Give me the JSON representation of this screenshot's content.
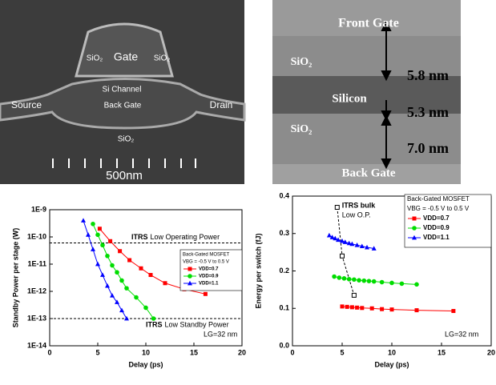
{
  "images": [
    {
      "labels": [
        "SiO₂",
        "Gate",
        "SiO₂",
        "Si Channel",
        "Source",
        "Back Gate",
        "Drain",
        "SiO₂",
        "500nm"
      ]
    },
    {
      "labels": [
        "Front Gate",
        "SiO₂",
        "5.8 nm",
        "Silicon",
        "5.3 nm",
        "SiO₂",
        "7.0 nm",
        "Back Gate"
      ]
    }
  ],
  "chart_data": [
    {
      "type": "line",
      "log_y": true,
      "xlabel": "Delay (ps)",
      "ylabel": "Standby Power per stage (W)",
      "xlim": [
        0,
        20
      ],
      "xticks": [
        0,
        5,
        10,
        15,
        20
      ],
      "ylim": [
        1e-14,
        1e-09
      ],
      "yticks": [
        {
          "value": 1e-14,
          "label": "1E-14"
        },
        {
          "value": 1e-13,
          "label": "1E-13"
        },
        {
          "value": 1e-12,
          "label": "1E-12"
        },
        {
          "value": 1e-11,
          "label": "1E-11"
        },
        {
          "value": 1e-10,
          "label": "1E-10"
        },
        {
          "value": 1e-09,
          "label": "1E-9"
        }
      ],
      "legend_title": [
        "Back-Gated MOSFET",
        "VBG = -0.5 V to 0.5 V"
      ],
      "legend_position": "right",
      "annotation": "LG=32 nm",
      "reference_lines": [
        {
          "value": 6e-11,
          "label_bold": "ITRS",
          "label": "Low Operating Power"
        },
        {
          "value": 1e-13,
          "label_bold": "ITRS",
          "label": "Low Standby Power"
        }
      ],
      "series": [
        {
          "name": "VDD=0.7",
          "color": "#ff0000",
          "marker": "square",
          "x": [
            5.2,
            6.3,
            7.3,
            8.3,
            9.5,
            10.5,
            12,
            14,
            16.2
          ],
          "values": [
            2e-10,
            7e-11,
            3e-11,
            1.4e-11,
            7e-12,
            4e-12,
            2e-12,
            1.2e-12,
            8e-13
          ]
        },
        {
          "name": "VDD=0.9",
          "color": "#00dd00",
          "marker": "circle",
          "x": [
            4.5,
            5,
            5.5,
            6,
            6.5,
            7,
            7.5,
            8,
            9,
            10,
            10.8
          ],
          "values": [
            3e-10,
            1.2e-10,
            5e-11,
            2e-11,
            9e-12,
            5e-12,
            2.5e-12,
            1.3e-12,
            6e-13,
            2.5e-13,
            1e-13
          ]
        },
        {
          "name": "VDD=1.1",
          "color": "#0000ff",
          "marker": "triangle",
          "x": [
            3.5,
            4,
            4.5,
            5,
            5.5,
            6,
            6.5,
            7,
            7.5,
            8
          ],
          "values": [
            4e-10,
            1.2e-10,
            3.5e-11,
            1e-11,
            4e-12,
            1.6e-12,
            7e-13,
            4e-13,
            2e-13,
            1e-13
          ]
        }
      ]
    },
    {
      "type": "line",
      "log_y": false,
      "xlabel": "Delay (ps)",
      "ylabel": "Energy per switch (fJ)",
      "xlim": [
        0,
        20
      ],
      "xticks": [
        0,
        5,
        10,
        15,
        20
      ],
      "ylim": [
        0,
        0.4
      ],
      "yticks": [
        {
          "value": 0,
          "label": "0.0"
        },
        0.1,
        0.2,
        0.3,
        0.4
      ],
      "legend_title": [
        "Back-Gated MOSFET",
        "VBG = -0.5 V to 0.5 V"
      ],
      "legend_position": "top-right",
      "annotation": "LG=32 nm",
      "reference_lines": [],
      "series": [
        {
          "name": "ITRS bulk",
          "subtitle": "Low O.P.",
          "legend": false,
          "dashed": true,
          "color": "#000000",
          "marker": "open-square",
          "x": [
            4.5,
            5,
            6.2
          ],
          "values": [
            0.37,
            0.24,
            0.135
          ]
        },
        {
          "name": "VDD=0.7",
          "color": "#ff0000",
          "marker": "square",
          "x": [
            5,
            5.5,
            6,
            6.5,
            7,
            8,
            9,
            10,
            12.5,
            16.2
          ],
          "values": [
            0.105,
            0.104,
            0.103,
            0.102,
            0.101,
            0.1,
            0.098,
            0.097,
            0.095,
            0.093
          ]
        },
        {
          "name": "VDD=0.9",
          "color": "#00dd00",
          "marker": "circle",
          "x": [
            4.2,
            4.7,
            5.2,
            5.7,
            6.2,
            6.7,
            7.2,
            7.7,
            8.2,
            9,
            10,
            11,
            12.5
          ],
          "values": [
            0.185,
            0.182,
            0.18,
            0.178,
            0.177,
            0.175,
            0.174,
            0.173,
            0.172,
            0.17,
            0.168,
            0.166,
            0.164
          ]
        },
        {
          "name": "VDD=1.1",
          "color": "#0000ff",
          "marker": "triangle",
          "x": [
            3.7,
            4,
            4.3,
            4.6,
            5,
            5.3,
            5.7,
            6,
            6.5,
            7,
            7.5,
            8.2
          ],
          "values": [
            0.295,
            0.29,
            0.287,
            0.283,
            0.28,
            0.277,
            0.274,
            0.272,
            0.269,
            0.266,
            0.263,
            0.26
          ]
        }
      ]
    }
  ]
}
